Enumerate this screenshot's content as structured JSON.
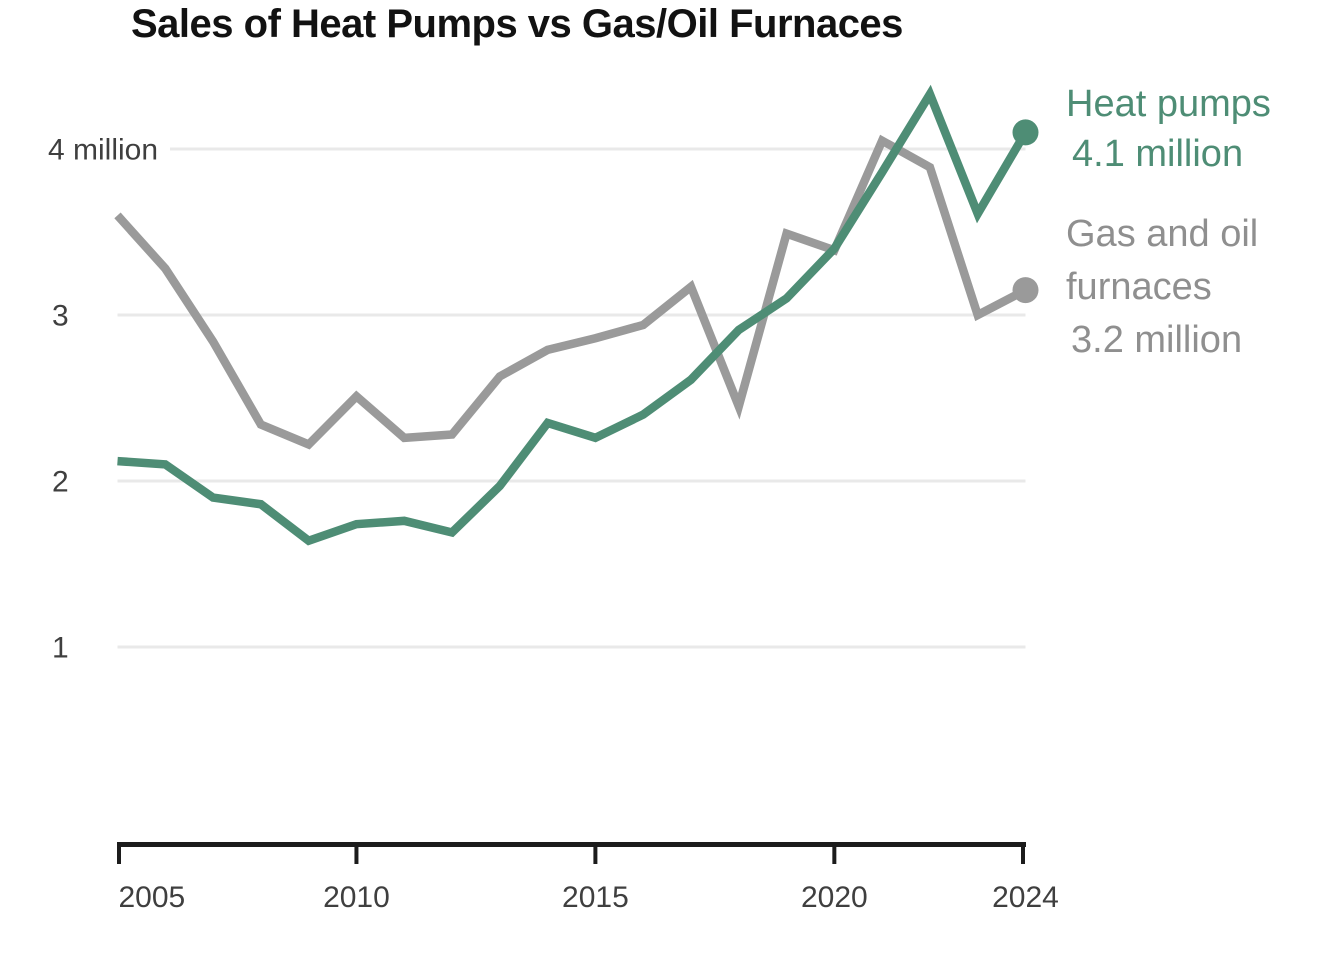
{
  "title": "Sales of Heat Pumps vs Gas/Oil Furnaces",
  "colors": {
    "heat_pumps": "#4e8d75",
    "gas_oil_furnaces": "#9a9a9a",
    "legend_gray_text": "#8f8f8f",
    "gridline": "#e9e9e9",
    "axis_line": "#1c1c1c",
    "tick_label": "#3f3f3f",
    "title_text": "#121212",
    "background": "#ffffff"
  },
  "legend": {
    "heat_pumps": {
      "label": "Heat pumps",
      "value": "4.1 million"
    },
    "gas_oil_furnaces": {
      "label_line1": "Gas and oil",
      "label_line2": "furnaces",
      "value": "3.2 million"
    }
  },
  "y_axis": {
    "tick_values": [
      4,
      3,
      2,
      1
    ],
    "tick_labels": [
      "4 million",
      "3",
      "2",
      "1"
    ]
  },
  "x_axis": {
    "tick_values": [
      2005,
      2010,
      2015,
      2020,
      2024
    ],
    "tick_labels": [
      "2005",
      "2010",
      "2015",
      "2020",
      "2024"
    ]
  },
  "chart_data": {
    "type": "line",
    "title": "Sales of Heat Pumps vs Gas/Oil Furnaces",
    "x": [
      2005,
      2006,
      2007,
      2008,
      2009,
      2010,
      2011,
      2012,
      2013,
      2014,
      2015,
      2016,
      2017,
      2018,
      2019,
      2020,
      2021,
      2022,
      2023,
      2024
    ],
    "xlim": [
      2005,
      2024
    ],
    "ylim": [
      0,
      4.5
    ],
    "y_gridlines": [
      1,
      2,
      3,
      4
    ],
    "grid": "horizontal",
    "legend_position": "right",
    "units": "million",
    "series": [
      {
        "name": "Heat pumps",
        "color_key": "heat_pumps",
        "end_label": "4.1 million",
        "values": [
          2.12,
          2.1,
          1.9,
          1.86,
          1.64,
          1.74,
          1.76,
          1.69,
          1.97,
          2.35,
          2.26,
          2.4,
          2.61,
          2.91,
          3.1,
          3.4,
          3.86,
          4.33,
          3.61,
          4.1
        ]
      },
      {
        "name": "Gas and oil furnaces",
        "color_key": "gas_oil_furnaces",
        "end_label": "3.2 million",
        "values": [
          3.6,
          3.28,
          2.84,
          2.34,
          2.22,
          2.51,
          2.26,
          2.28,
          2.63,
          2.79,
          2.86,
          2.94,
          3.17,
          2.45,
          3.49,
          3.39,
          4.05,
          3.89,
          3.0,
          3.15
        ]
      }
    ]
  }
}
